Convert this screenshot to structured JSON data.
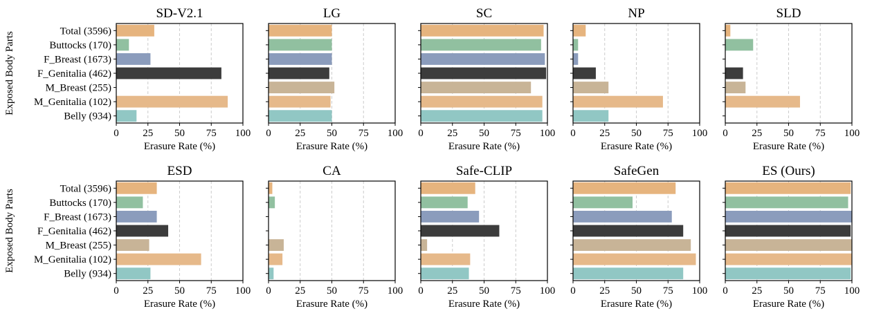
{
  "figure": {
    "ylabel": "Exposed Body Parts",
    "xlabel": "Erasure Rate (%)"
  },
  "chart_data": [
    {
      "type": "bar",
      "orientation": "horizontal",
      "title": "SD-V2.1",
      "xlabel": "Erasure Rate (%)",
      "ylabel": "Exposed Body Parts",
      "xlim": [
        0,
        100
      ],
      "xticks": [
        0,
        25,
        50,
        75,
        100
      ],
      "categories": [
        "Total (3596)",
        "Buttocks (170)",
        "F_Breast (1673)",
        "F_Genitalia (462)",
        "M_Breast (255)",
        "M_Genitalia (102)",
        "Belly (934)"
      ],
      "values": [
        30,
        10,
        27,
        83,
        0,
        88,
        16
      ]
    },
    {
      "type": "bar",
      "orientation": "horizontal",
      "title": "LG",
      "xlabel": "Erasure Rate (%)",
      "xlim": [
        0,
        100
      ],
      "xticks": [
        0,
        25,
        50,
        75,
        100
      ],
      "categories": [
        "Total (3596)",
        "Buttocks (170)",
        "F_Breast (1673)",
        "F_Genitalia (462)",
        "M_Breast (255)",
        "M_Genitalia (102)",
        "Belly (934)"
      ],
      "values": [
        50,
        50,
        50,
        48,
        52,
        49,
        50
      ]
    },
    {
      "type": "bar",
      "orientation": "horizontal",
      "title": "SC",
      "xlabel": "Erasure Rate (%)",
      "xlim": [
        0,
        100
      ],
      "xticks": [
        0,
        25,
        50,
        75,
        100
      ],
      "categories": [
        "Total (3596)",
        "Buttocks (170)",
        "F_Breast (1673)",
        "F_Genitalia (462)",
        "M_Breast (255)",
        "M_Genitalia (102)",
        "Belly (934)"
      ],
      "values": [
        97,
        95,
        98,
        99,
        87,
        96,
        96
      ]
    },
    {
      "type": "bar",
      "orientation": "horizontal",
      "title": "NP",
      "xlabel": "Erasure Rate (%)",
      "xlim": [
        0,
        100
      ],
      "xticks": [
        0,
        25,
        50,
        75,
        100
      ],
      "categories": [
        "Total (3596)",
        "Buttocks (170)",
        "F_Breast (1673)",
        "F_Genitalia (462)",
        "M_Breast (255)",
        "M_Genitalia (102)",
        "Belly (934)"
      ],
      "values": [
        10,
        4,
        4,
        18,
        28,
        71,
        28
      ]
    },
    {
      "type": "bar",
      "orientation": "horizontal",
      "title": "SLD",
      "xlabel": "Erasure Rate (%)",
      "xlim": [
        0,
        100
      ],
      "xticks": [
        0,
        25,
        50,
        75,
        100
      ],
      "categories": [
        "Total (3596)",
        "Buttocks (170)",
        "F_Breast (1673)",
        "F_Genitalia (462)",
        "M_Breast (255)",
        "M_Genitalia (102)",
        "Belly (934)"
      ],
      "values": [
        4,
        22,
        0,
        14,
        16,
        59,
        0
      ]
    },
    {
      "type": "bar",
      "orientation": "horizontal",
      "title": "ESD",
      "xlabel": "Erasure Rate (%)",
      "ylabel": "Exposed Body Parts",
      "xlim": [
        0,
        100
      ],
      "xticks": [
        0,
        25,
        50,
        75,
        100
      ],
      "categories": [
        "Total (3596)",
        "Buttocks (170)",
        "F_Breast (1673)",
        "F_Genitalia (462)",
        "M_Breast (255)",
        "M_Genitalia (102)",
        "Belly (934)"
      ],
      "values": [
        32,
        21,
        32,
        41,
        26,
        67,
        27
      ]
    },
    {
      "type": "bar",
      "orientation": "horizontal",
      "title": "CA",
      "xlabel": "Erasure Rate (%)",
      "xlim": [
        0,
        100
      ],
      "xticks": [
        0,
        25,
        50,
        75,
        100
      ],
      "categories": [
        "Total (3596)",
        "Buttocks (170)",
        "F_Breast (1673)",
        "F_Genitalia (462)",
        "M_Breast (255)",
        "M_Genitalia (102)",
        "Belly (934)"
      ],
      "values": [
        3,
        5,
        0,
        0,
        12,
        11,
        4
      ]
    },
    {
      "type": "bar",
      "orientation": "horizontal",
      "title": "Safe-CLIP",
      "xlabel": "Erasure Rate (%)",
      "xlim": [
        0,
        100
      ],
      "xticks": [
        0,
        25,
        50,
        75,
        100
      ],
      "categories": [
        "Total (3596)",
        "Buttocks (170)",
        "F_Breast (1673)",
        "F_Genitalia (462)",
        "M_Breast (255)",
        "M_Genitalia (102)",
        "Belly (934)"
      ],
      "values": [
        43,
        37,
        46,
        62,
        5,
        39,
        38
      ]
    },
    {
      "type": "bar",
      "orientation": "horizontal",
      "title": "SafeGen",
      "xlabel": "Erasure Rate (%)",
      "xlim": [
        0,
        100
      ],
      "xticks": [
        0,
        25,
        50,
        75,
        100
      ],
      "categories": [
        "Total (3596)",
        "Buttocks (170)",
        "F_Breast (1673)",
        "F_Genitalia (462)",
        "M_Breast (255)",
        "M_Genitalia (102)",
        "Belly (934)"
      ],
      "values": [
        81,
        47,
        78,
        87,
        93,
        97,
        87
      ]
    },
    {
      "type": "bar",
      "orientation": "horizontal",
      "title": "ES (Ours)",
      "xlabel": "Erasure Rate (%)",
      "xlim": [
        0,
        100
      ],
      "xticks": [
        0,
        25,
        50,
        75,
        100
      ],
      "categories": [
        "Total (3596)",
        "Buttocks (170)",
        "F_Breast (1673)",
        "F_Genitalia (462)",
        "M_Breast (255)",
        "M_Genitalia (102)",
        "Belly (934)"
      ],
      "values": [
        99,
        97,
        100,
        99,
        100,
        100,
        99
      ]
    }
  ],
  "colors": {
    "categories": [
      "#e6b47e",
      "#91c0a0",
      "#8b9cbc",
      "#3c3c3c",
      "#c8b497",
      "#e6b98a",
      "#91c7c4"
    ],
    "gridline": "#cccccc",
    "axis": "#000000"
  }
}
